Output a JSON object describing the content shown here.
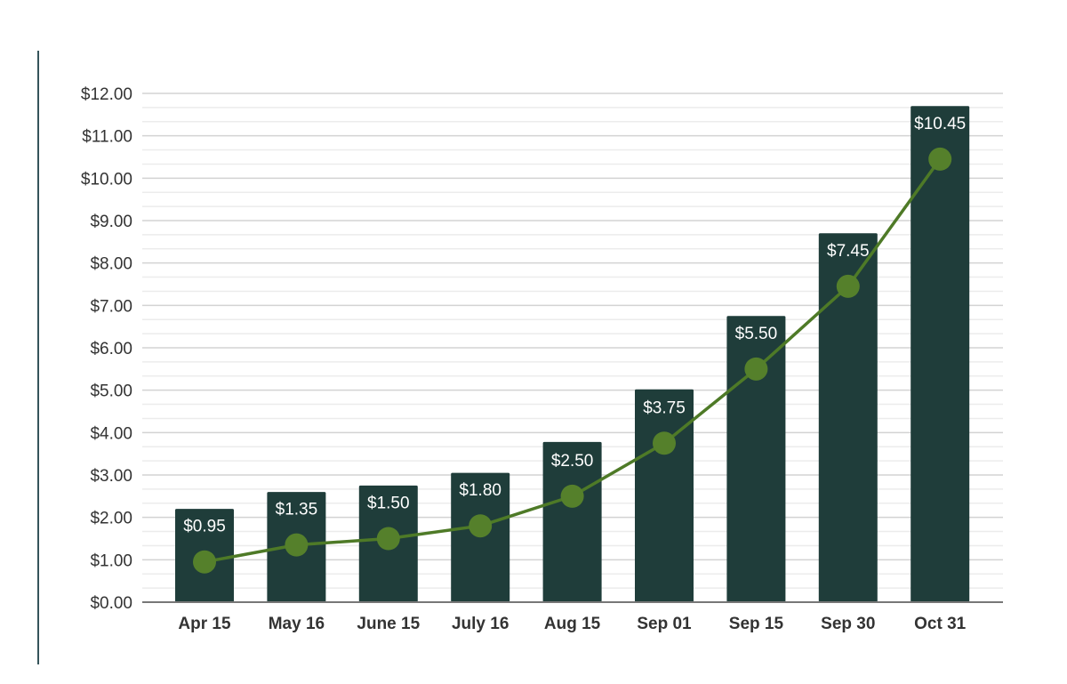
{
  "chart_data": {
    "type": "bar",
    "categories": [
      "Apr 15",
      "May 16",
      "June 15",
      "July 16",
      "Aug 15",
      "Sep 01",
      "Sep 15",
      "Sep 30",
      "Oct 31"
    ],
    "series": [
      {
        "type": "bar",
        "values": [
          2.2,
          2.6,
          2.75,
          3.05,
          3.78,
          5.02,
          6.75,
          8.7,
          11.7
        ]
      },
      {
        "type": "line",
        "values": [
          0.95,
          1.35,
          1.5,
          1.8,
          2.5,
          3.75,
          5.5,
          7.45,
          10.45
        ],
        "data_labels": [
          "$0.95",
          "$1.35",
          "$1.50",
          "$1.80",
          "$2.50",
          "$3.75",
          "$5.50",
          "$7.45",
          "$10.45"
        ]
      }
    ],
    "ylim": [
      0,
      12
    ],
    "yticks": [
      0,
      1,
      2,
      3,
      4,
      5,
      6,
      7,
      8,
      9,
      10,
      11,
      12
    ],
    "ytick_labels": [
      "$0.00",
      "$1.00",
      "$2.00",
      "$3.00",
      "$4.00",
      "$5.00",
      "$6.00",
      "$7.00",
      "$8.00",
      "$9.00",
      "$10.00",
      "$11.00",
      "$12.00"
    ],
    "title": "",
    "xlabel": "",
    "ylabel": "",
    "grid": true,
    "legend": "none",
    "colors": {
      "bar": "#1f3d3a",
      "line": "#4e7a27",
      "marker": "#55802b",
      "grid_major": "#d3d3d3",
      "grid_minor": "#ececec",
      "axis": "#777777",
      "data_label": "#ffffff",
      "text": "#333333"
    }
  }
}
